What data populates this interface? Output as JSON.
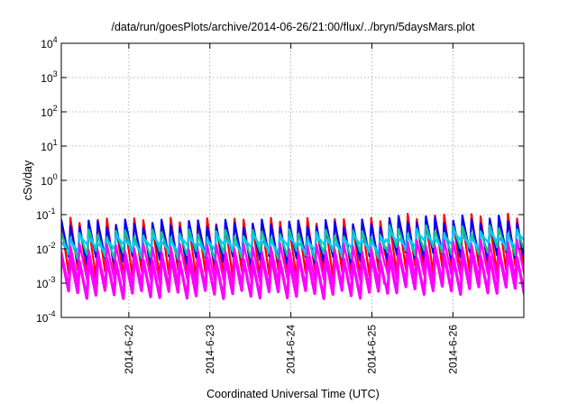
{
  "chart_data": {
    "type": "line",
    "title": "/data/run/goesPlots/archive/2014-06-26/21:00/flux/../bryn/5daysMars.plot",
    "xlabel": "Coordinated Universal Time (UTC)",
    "ylabel": "cSv/day",
    "yscale": "log",
    "ylim": [
      0.0001,
      10000
    ],
    "y_ticks": [
      {
        "base": "10",
        "exp": "-4",
        "value": 0.0001
      },
      {
        "base": "10",
        "exp": "-3",
        "value": 0.001
      },
      {
        "base": "10",
        "exp": "-2",
        "value": 0.01
      },
      {
        "base": "10",
        "exp": "-1",
        "value": 0.1
      },
      {
        "base": "10",
        "exp": "0",
        "value": 1
      },
      {
        "base": "10",
        "exp": "1",
        "value": 10
      },
      {
        "base": "10",
        "exp": "2",
        "value": 100
      },
      {
        "base": "10",
        "exp": "3",
        "value": 1000
      },
      {
        "base": "10",
        "exp": "4",
        "value": 10000
      }
    ],
    "xlim": [
      "2014-06-21T04:00",
      "2014-06-26T21:00"
    ],
    "x_ticks": [
      {
        "label": "2014-6-22",
        "value": "2014-06-22T00:00"
      },
      {
        "label": "2014-6-23",
        "value": "2014-06-23T00:00"
      },
      {
        "label": "2014-6-24",
        "value": "2014-06-24T00:00"
      },
      {
        "label": "2014-6-25",
        "value": "2014-06-25T00:00"
      },
      {
        "label": "2014-6-26",
        "value": "2014-06-26T00:00"
      }
    ],
    "grid": true,
    "oscillation_period_hours": 2.7,
    "series": [
      {
        "color": "#ff0000",
        "peak": 0.07,
        "trough": 0.0015
      },
      {
        "color": "#ff00ff",
        "peak": 0.006,
        "trough": 0.0004
      },
      {
        "color": "#0000ff",
        "peak": 0.06,
        "trough": 0.004
      },
      {
        "color": "#00cc99",
        "peak": 0.03,
        "trough": 0.006
      },
      {
        "color": "#00ccff",
        "peak": 0.02,
        "trough": 0.01
      },
      {
        "color": "#ff00ff",
        "peak": 0.012,
        "trough": 0.0009
      }
    ]
  }
}
